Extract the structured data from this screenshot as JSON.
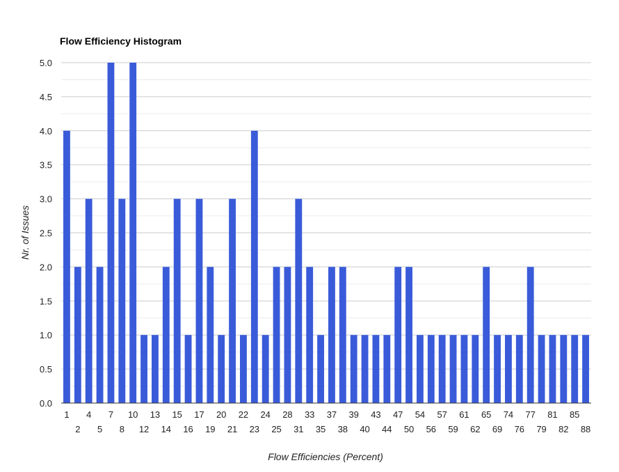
{
  "chart_data": {
    "type": "bar",
    "title": "Flow Efficiency Histogram",
    "xlabel": "Flow Efficiencies (Percent)",
    "ylabel": "Nr. of Issues",
    "ylim": [
      0,
      5
    ],
    "yticks": [
      "0.0",
      "0.5",
      "1.0",
      "1.5",
      "2.0",
      "2.5",
      "3.0",
      "3.5",
      "4.0",
      "4.5",
      "5.0"
    ],
    "grid": true,
    "legend": "none",
    "categories": [
      "1",
      "2",
      "4",
      "5",
      "7",
      "8",
      "10",
      "12",
      "13",
      "14",
      "15",
      "16",
      "17",
      "19",
      "20",
      "21",
      "22",
      "23",
      "24",
      "25",
      "28",
      "31",
      "33",
      "35",
      "37",
      "38",
      "39",
      "40",
      "43",
      "44",
      "47",
      "50",
      "54",
      "56",
      "57",
      "59",
      "61",
      "62",
      "65",
      "69",
      "74",
      "76",
      "77",
      "79",
      "81",
      "82",
      "85",
      "88"
    ],
    "values": [
      4,
      2,
      3,
      2,
      5,
      3,
      5,
      1,
      1,
      2,
      3,
      1,
      3,
      2,
      1,
      3,
      1,
      4,
      1,
      2,
      2,
      3,
      2,
      1,
      2,
      2,
      1,
      1,
      1,
      1,
      2,
      2,
      1,
      1,
      1,
      1,
      1,
      1,
      2,
      1,
      1,
      1,
      2,
      1,
      1,
      1,
      1,
      1
    ],
    "bar_color": "#3a5bd9"
  }
}
